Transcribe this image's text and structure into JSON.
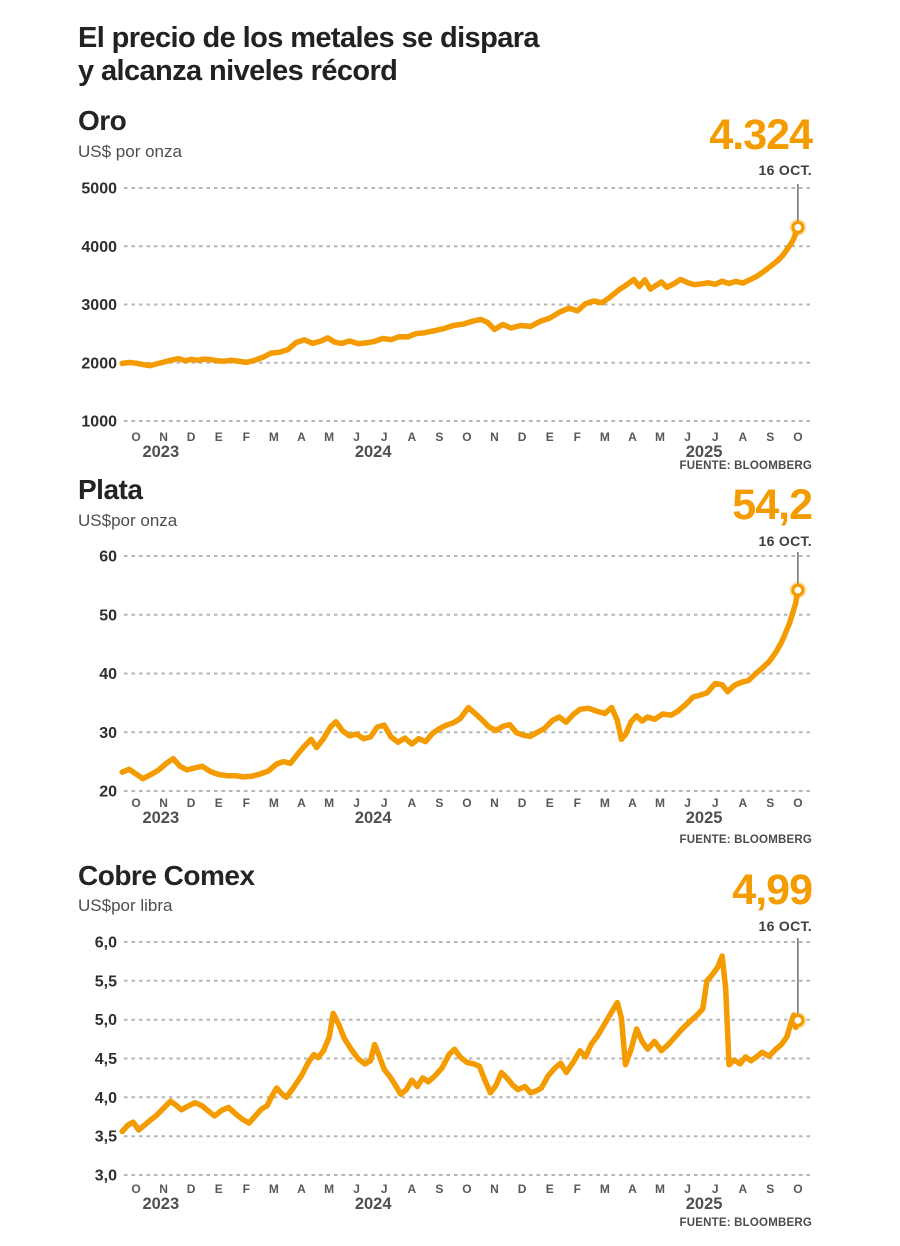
{
  "headline": {
    "line1": "El precio de los metales se dispara",
    "line2": "y alcanza niveles récord"
  },
  "colors": {
    "accent": "#F49B00",
    "headline_text": "#222222",
    "grid": "#b5b5b5",
    "axis_text": "#2f2f2f",
    "month_text": "#585858"
  },
  "x_months": [
    "O",
    "N",
    "D",
    "E",
    "F",
    "M",
    "A",
    "M",
    "J",
    "J",
    "A",
    "S",
    "O",
    "N",
    "D",
    "E",
    "F",
    "M",
    "A",
    "M",
    "J",
    "J",
    "A",
    "S",
    "O"
  ],
  "x_years": [
    {
      "label": "2023",
      "m": 1.4
    },
    {
      "label": "2024",
      "m": 9.1
    },
    {
      "label": "2025",
      "m": 21.1
    }
  ],
  "chart_data": [
    {
      "type": "line",
      "title": "Oro",
      "subtitle": "US$ por onza",
      "value_label": "4.324",
      "date_label": "16 OCT.",
      "source": "FUENTE: BLOOMBERG",
      "ylim": [
        1000,
        5000
      ],
      "yticks": [
        {
          "v": 5000,
          "label": "5000"
        },
        {
          "v": 4000,
          "label": "4000"
        },
        {
          "v": 3000,
          "label": "3000"
        },
        {
          "v": 2000,
          "label": "2000"
        },
        {
          "v": 1000,
          "label": "1000"
        }
      ],
      "series_points": [
        [
          0,
          1988
        ],
        [
          0.25,
          2004
        ],
        [
          0.5,
          1992
        ],
        [
          0.75,
          1970
        ],
        [
          1.0,
          1950
        ],
        [
          1.25,
          1980
        ],
        [
          1.5,
          2012
        ],
        [
          1.75,
          2042
        ],
        [
          2.05,
          2072
        ],
        [
          2.3,
          2032
        ],
        [
          2.5,
          2058
        ],
        [
          2.75,
          2042
        ],
        [
          2.95,
          2062
        ],
        [
          3.2,
          2054
        ],
        [
          3.45,
          2034
        ],
        [
          3.7,
          2026
        ],
        [
          3.95,
          2044
        ],
        [
          4.2,
          2028
        ],
        [
          4.5,
          2006
        ],
        [
          4.8,
          2042
        ],
        [
          5.1,
          2094
        ],
        [
          5.4,
          2166
        ],
        [
          5.7,
          2180
        ],
        [
          6.0,
          2222
        ],
        [
          6.3,
          2346
        ],
        [
          6.6,
          2394
        ],
        [
          6.9,
          2334
        ],
        [
          7.2,
          2372
        ],
        [
          7.45,
          2426
        ],
        [
          7.7,
          2354
        ],
        [
          7.95,
          2332
        ],
        [
          8.25,
          2374
        ],
        [
          8.55,
          2328
        ],
        [
          8.85,
          2340
        ],
        [
          9.15,
          2366
        ],
        [
          9.45,
          2416
        ],
        [
          9.75,
          2396
        ],
        [
          10.05,
          2448
        ],
        [
          10.35,
          2444
        ],
        [
          10.65,
          2498
        ],
        [
          10.95,
          2514
        ],
        [
          11.3,
          2548
        ],
        [
          11.65,
          2584
        ],
        [
          12.0,
          2640
        ],
        [
          12.35,
          2662
        ],
        [
          12.7,
          2714
        ],
        [
          13.0,
          2744
        ],
        [
          13.25,
          2692
        ],
        [
          13.5,
          2570
        ],
        [
          13.8,
          2656
        ],
        [
          14.1,
          2596
        ],
        [
          14.45,
          2640
        ],
        [
          14.8,
          2624
        ],
        [
          15.15,
          2710
        ],
        [
          15.5,
          2766
        ],
        [
          15.85,
          2866
        ],
        [
          16.2,
          2938
        ],
        [
          16.5,
          2890
        ],
        [
          16.8,
          3014
        ],
        [
          17.1,
          3060
        ],
        [
          17.4,
          3030
        ],
        [
          17.7,
          3132
        ],
        [
          18.0,
          3248
        ],
        [
          18.3,
          3342
        ],
        [
          18.55,
          3430
        ],
        [
          18.75,
          3308
        ],
        [
          18.95,
          3422
        ],
        [
          19.15,
          3264
        ],
        [
          19.35,
          3326
        ],
        [
          19.55,
          3386
        ],
        [
          19.75,
          3296
        ],
        [
          20.0,
          3356
        ],
        [
          20.25,
          3430
        ],
        [
          20.5,
          3376
        ],
        [
          20.75,
          3340
        ],
        [
          21.0,
          3356
        ],
        [
          21.25,
          3372
        ],
        [
          21.5,
          3346
        ],
        [
          21.75,
          3398
        ],
        [
          22.0,
          3360
        ],
        [
          22.25,
          3396
        ],
        [
          22.5,
          3368
        ],
        [
          22.75,
          3422
        ],
        [
          23.0,
          3482
        ],
        [
          23.25,
          3562
        ],
        [
          23.5,
          3652
        ],
        [
          23.75,
          3746
        ],
        [
          23.95,
          3842
        ],
        [
          24.1,
          3942
        ],
        [
          24.25,
          4042
        ],
        [
          24.35,
          4132
        ],
        [
          24.42,
          4222
        ],
        [
          24.5,
          4324
        ]
      ]
    },
    {
      "type": "line",
      "title": "Plata",
      "subtitle": "US$por onza",
      "value_label": "54,2",
      "date_label": "16 OCT.",
      "source": "FUENTE: BLOOMBERG",
      "ylim": [
        20,
        60
      ],
      "yticks": [
        {
          "v": 60,
          "label": "60"
        },
        {
          "v": 50,
          "label": "50"
        },
        {
          "v": 40,
          "label": "40"
        },
        {
          "v": 30,
          "label": "30"
        },
        {
          "v": 20,
          "label": "20"
        }
      ],
      "series_points": [
        [
          0,
          23.2
        ],
        [
          0.25,
          23.7
        ],
        [
          0.5,
          22.9
        ],
        [
          0.75,
          22.1
        ],
        [
          1.0,
          22.7
        ],
        [
          1.3,
          23.5
        ],
        [
          1.6,
          24.7
        ],
        [
          1.85,
          25.5
        ],
        [
          2.1,
          24.2
        ],
        [
          2.35,
          23.6
        ],
        [
          2.6,
          23.9
        ],
        [
          2.9,
          24.2
        ],
        [
          3.2,
          23.3
        ],
        [
          3.5,
          22.8
        ],
        [
          3.8,
          22.6
        ],
        [
          4.1,
          22.6
        ],
        [
          4.4,
          22.4
        ],
        [
          4.7,
          22.5
        ],
        [
          5.0,
          22.9
        ],
        [
          5.3,
          23.4
        ],
        [
          5.6,
          24.6
        ],
        [
          5.85,
          25.0
        ],
        [
          6.1,
          24.7
        ],
        [
          6.35,
          26.2
        ],
        [
          6.6,
          27.6
        ],
        [
          6.85,
          28.8
        ],
        [
          7.05,
          27.4
        ],
        [
          7.3,
          28.9
        ],
        [
          7.55,
          30.9
        ],
        [
          7.75,
          31.8
        ],
        [
          8.0,
          30.2
        ],
        [
          8.25,
          29.4
        ],
        [
          8.5,
          29.7
        ],
        [
          8.75,
          28.9
        ],
        [
          9.0,
          29.2
        ],
        [
          9.25,
          30.9
        ],
        [
          9.5,
          31.2
        ],
        [
          9.75,
          29.2
        ],
        [
          10.0,
          28.3
        ],
        [
          10.25,
          29.0
        ],
        [
          10.5,
          28.0
        ],
        [
          10.75,
          28.9
        ],
        [
          11.0,
          28.4
        ],
        [
          11.25,
          29.8
        ],
        [
          11.5,
          30.6
        ],
        [
          11.75,
          31.2
        ],
        [
          12.0,
          31.6
        ],
        [
          12.25,
          32.3
        ],
        [
          12.55,
          34.2
        ],
        [
          12.8,
          33.2
        ],
        [
          13.05,
          32.1
        ],
        [
          13.3,
          30.9
        ],
        [
          13.55,
          30.3
        ],
        [
          13.8,
          31.0
        ],
        [
          14.05,
          31.3
        ],
        [
          14.3,
          29.9
        ],
        [
          14.55,
          29.5
        ],
        [
          14.8,
          29.3
        ],
        [
          15.05,
          30.0
        ],
        [
          15.3,
          30.6
        ],
        [
          15.6,
          32.0
        ],
        [
          15.85,
          32.6
        ],
        [
          16.1,
          31.7
        ],
        [
          16.35,
          33.0
        ],
        [
          16.6,
          33.9
        ],
        [
          16.9,
          34.1
        ],
        [
          17.2,
          33.6
        ],
        [
          17.5,
          33.2
        ],
        [
          17.75,
          34.2
        ],
        [
          17.95,
          32.0
        ],
        [
          18.1,
          28.8
        ],
        [
          18.25,
          29.6
        ],
        [
          18.45,
          31.8
        ],
        [
          18.65,
          32.8
        ],
        [
          18.85,
          31.9
        ],
        [
          19.05,
          32.6
        ],
        [
          19.3,
          32.2
        ],
        [
          19.6,
          33.1
        ],
        [
          19.9,
          32.9
        ],
        [
          20.15,
          33.6
        ],
        [
          20.45,
          34.8
        ],
        [
          20.7,
          36.0
        ],
        [
          20.95,
          36.3
        ],
        [
          21.2,
          36.7
        ],
        [
          21.5,
          38.3
        ],
        [
          21.75,
          38.1
        ],
        [
          21.95,
          36.9
        ],
        [
          22.2,
          38.0
        ],
        [
          22.45,
          38.5
        ],
        [
          22.7,
          38.8
        ],
        [
          22.95,
          39.9
        ],
        [
          23.2,
          40.9
        ],
        [
          23.45,
          42.0
        ],
        [
          23.7,
          43.6
        ],
        [
          23.9,
          45.3
        ],
        [
          24.05,
          46.9
        ],
        [
          24.2,
          48.6
        ],
        [
          24.32,
          50.4
        ],
        [
          24.42,
          52.0
        ],
        [
          24.5,
          54.2
        ]
      ]
    },
    {
      "type": "line",
      "title": "Cobre Comex",
      "subtitle": "US$por libra",
      "value_label": "4,99",
      "date_label": "16 OCT.",
      "source": "FUENTE: BLOOMBERG",
      "ylim": [
        3.0,
        6.0
      ],
      "yticks": [
        {
          "v": 6.0,
          "label": "6,0"
        },
        {
          "v": 5.5,
          "label": "5,5"
        },
        {
          "v": 5.0,
          "label": "5,0"
        },
        {
          "v": 4.5,
          "label": "4,5"
        },
        {
          "v": 4.0,
          "label": "4,0"
        },
        {
          "v": 3.5,
          "label": "3,5"
        },
        {
          "v": 3.0,
          "label": "3,0"
        }
      ],
      "series_points": [
        [
          0,
          3.56
        ],
        [
          0.2,
          3.64
        ],
        [
          0.4,
          3.68
        ],
        [
          0.6,
          3.58
        ],
        [
          0.8,
          3.64
        ],
        [
          1.0,
          3.7
        ],
        [
          1.25,
          3.77
        ],
        [
          1.5,
          3.86
        ],
        [
          1.75,
          3.95
        ],
        [
          1.95,
          3.9
        ],
        [
          2.15,
          3.84
        ],
        [
          2.4,
          3.89
        ],
        [
          2.65,
          3.93
        ],
        [
          2.9,
          3.89
        ],
        [
          3.1,
          3.83
        ],
        [
          3.35,
          3.76
        ],
        [
          3.6,
          3.83
        ],
        [
          3.85,
          3.87
        ],
        [
          4.1,
          3.79
        ],
        [
          4.35,
          3.72
        ],
        [
          4.6,
          3.67
        ],
        [
          4.85,
          3.77
        ],
        [
          5.05,
          3.85
        ],
        [
          5.25,
          3.89
        ],
        [
          5.45,
          4.03
        ],
        [
          5.6,
          4.12
        ],
        [
          5.8,
          4.04
        ],
        [
          5.95,
          4.0
        ],
        [
          6.2,
          4.12
        ],
        [
          6.5,
          4.28
        ],
        [
          6.75,
          4.45
        ],
        [
          6.95,
          4.55
        ],
        [
          7.1,
          4.51
        ],
        [
          7.3,
          4.6
        ],
        [
          7.5,
          4.77
        ],
        [
          7.65,
          5.08
        ],
        [
          7.85,
          4.94
        ],
        [
          8.05,
          4.76
        ],
        [
          8.3,
          4.62
        ],
        [
          8.55,
          4.5
        ],
        [
          8.8,
          4.43
        ],
        [
          9.0,
          4.47
        ],
        [
          9.15,
          4.68
        ],
        [
          9.3,
          4.55
        ],
        [
          9.5,
          4.36
        ],
        [
          9.7,
          4.27
        ],
        [
          9.9,
          4.16
        ],
        [
          10.1,
          4.04
        ],
        [
          10.3,
          4.1
        ],
        [
          10.5,
          4.22
        ],
        [
          10.7,
          4.14
        ],
        [
          10.9,
          4.25
        ],
        [
          11.1,
          4.2
        ],
        [
          11.35,
          4.28
        ],
        [
          11.6,
          4.38
        ],
        [
          11.85,
          4.55
        ],
        [
          12.05,
          4.62
        ],
        [
          12.25,
          4.52
        ],
        [
          12.5,
          4.45
        ],
        [
          12.75,
          4.43
        ],
        [
          12.95,
          4.4
        ],
        [
          13.15,
          4.22
        ],
        [
          13.35,
          4.06
        ],
        [
          13.55,
          4.15
        ],
        [
          13.75,
          4.32
        ],
        [
          13.95,
          4.25
        ],
        [
          14.15,
          4.16
        ],
        [
          14.35,
          4.1
        ],
        [
          14.6,
          4.14
        ],
        [
          14.8,
          4.06
        ],
        [
          15.0,
          4.08
        ],
        [
          15.2,
          4.12
        ],
        [
          15.45,
          4.28
        ],
        [
          15.7,
          4.38
        ],
        [
          15.9,
          4.44
        ],
        [
          16.1,
          4.32
        ],
        [
          16.35,
          4.45
        ],
        [
          16.6,
          4.6
        ],
        [
          16.8,
          4.52
        ],
        [
          17.0,
          4.68
        ],
        [
          17.25,
          4.8
        ],
        [
          17.5,
          4.95
        ],
        [
          17.75,
          5.1
        ],
        [
          17.95,
          5.22
        ],
        [
          18.1,
          5.02
        ],
        [
          18.25,
          4.42
        ],
        [
          18.45,
          4.62
        ],
        [
          18.65,
          4.88
        ],
        [
          18.85,
          4.72
        ],
        [
          19.05,
          4.62
        ],
        [
          19.3,
          4.72
        ],
        [
          19.55,
          4.6
        ],
        [
          19.8,
          4.68
        ],
        [
          20.05,
          4.78
        ],
        [
          20.3,
          4.88
        ],
        [
          20.6,
          4.98
        ],
        [
          20.85,
          5.06
        ],
        [
          21.05,
          5.14
        ],
        [
          21.2,
          5.5
        ],
        [
          21.4,
          5.58
        ],
        [
          21.6,
          5.68
        ],
        [
          21.75,
          5.82
        ],
        [
          21.88,
          5.4
        ],
        [
          22.0,
          4.42
        ],
        [
          22.2,
          4.48
        ],
        [
          22.4,
          4.43
        ],
        [
          22.6,
          4.52
        ],
        [
          22.8,
          4.47
        ],
        [
          23.0,
          4.52
        ],
        [
          23.2,
          4.58
        ],
        [
          23.45,
          4.53
        ],
        [
          23.7,
          4.62
        ],
        [
          23.9,
          4.68
        ],
        [
          24.1,
          4.78
        ],
        [
          24.25,
          4.96
        ],
        [
          24.35,
          5.06
        ],
        [
          24.42,
          4.9
        ],
        [
          24.5,
          4.99
        ]
      ]
    }
  ]
}
